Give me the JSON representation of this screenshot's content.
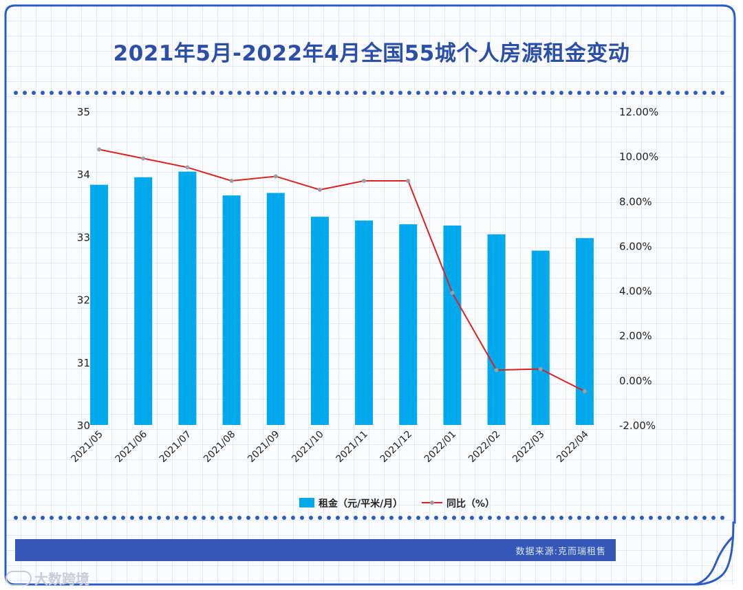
{
  "title": "2021年5月-2022年4月全国55城个人房源租金变动",
  "source": "数据来源:克而瑞租售",
  "watermark": "大数跨境",
  "colors": {
    "bar": "#00a9ec",
    "line": "#e0201c",
    "marker": "#9aa0a8",
    "accent": "#2b4ea6",
    "band": "#3558b8"
  },
  "chart_data": {
    "type": "bar",
    "categories": [
      "2021/05",
      "2021/06",
      "2021/07",
      "2021/08",
      "2021/09",
      "2021/10",
      "2021/11",
      "2021/12",
      "2022/01",
      "2022/02",
      "2022/03",
      "2022/04"
    ],
    "series": [
      {
        "name": "租金（元/平米/月）",
        "type": "bar",
        "axis": "left",
        "values": [
          33.83,
          33.95,
          34.04,
          33.66,
          33.7,
          33.32,
          33.26,
          33.2,
          33.18,
          33.04,
          32.78,
          32.98
        ]
      },
      {
        "name": "同比（%）",
        "type": "line",
        "axis": "right",
        "values": [
          10.3,
          9.9,
          9.5,
          8.9,
          9.1,
          8.5,
          8.9,
          8.9,
          3.9,
          0.45,
          0.5,
          -0.5
        ]
      }
    ],
    "yleft": {
      "min": 30,
      "max": 35,
      "ticks": [
        "30",
        "31",
        "32",
        "33",
        "34",
        "35"
      ]
    },
    "yright": {
      "min": -2,
      "max": 12,
      "ticks": [
        "-2.00%",
        "0.00%",
        "2.00%",
        "4.00%",
        "6.00%",
        "8.00%",
        "10.00%",
        "12.00%"
      ]
    },
    "legend": "bottom",
    "grid": false
  }
}
